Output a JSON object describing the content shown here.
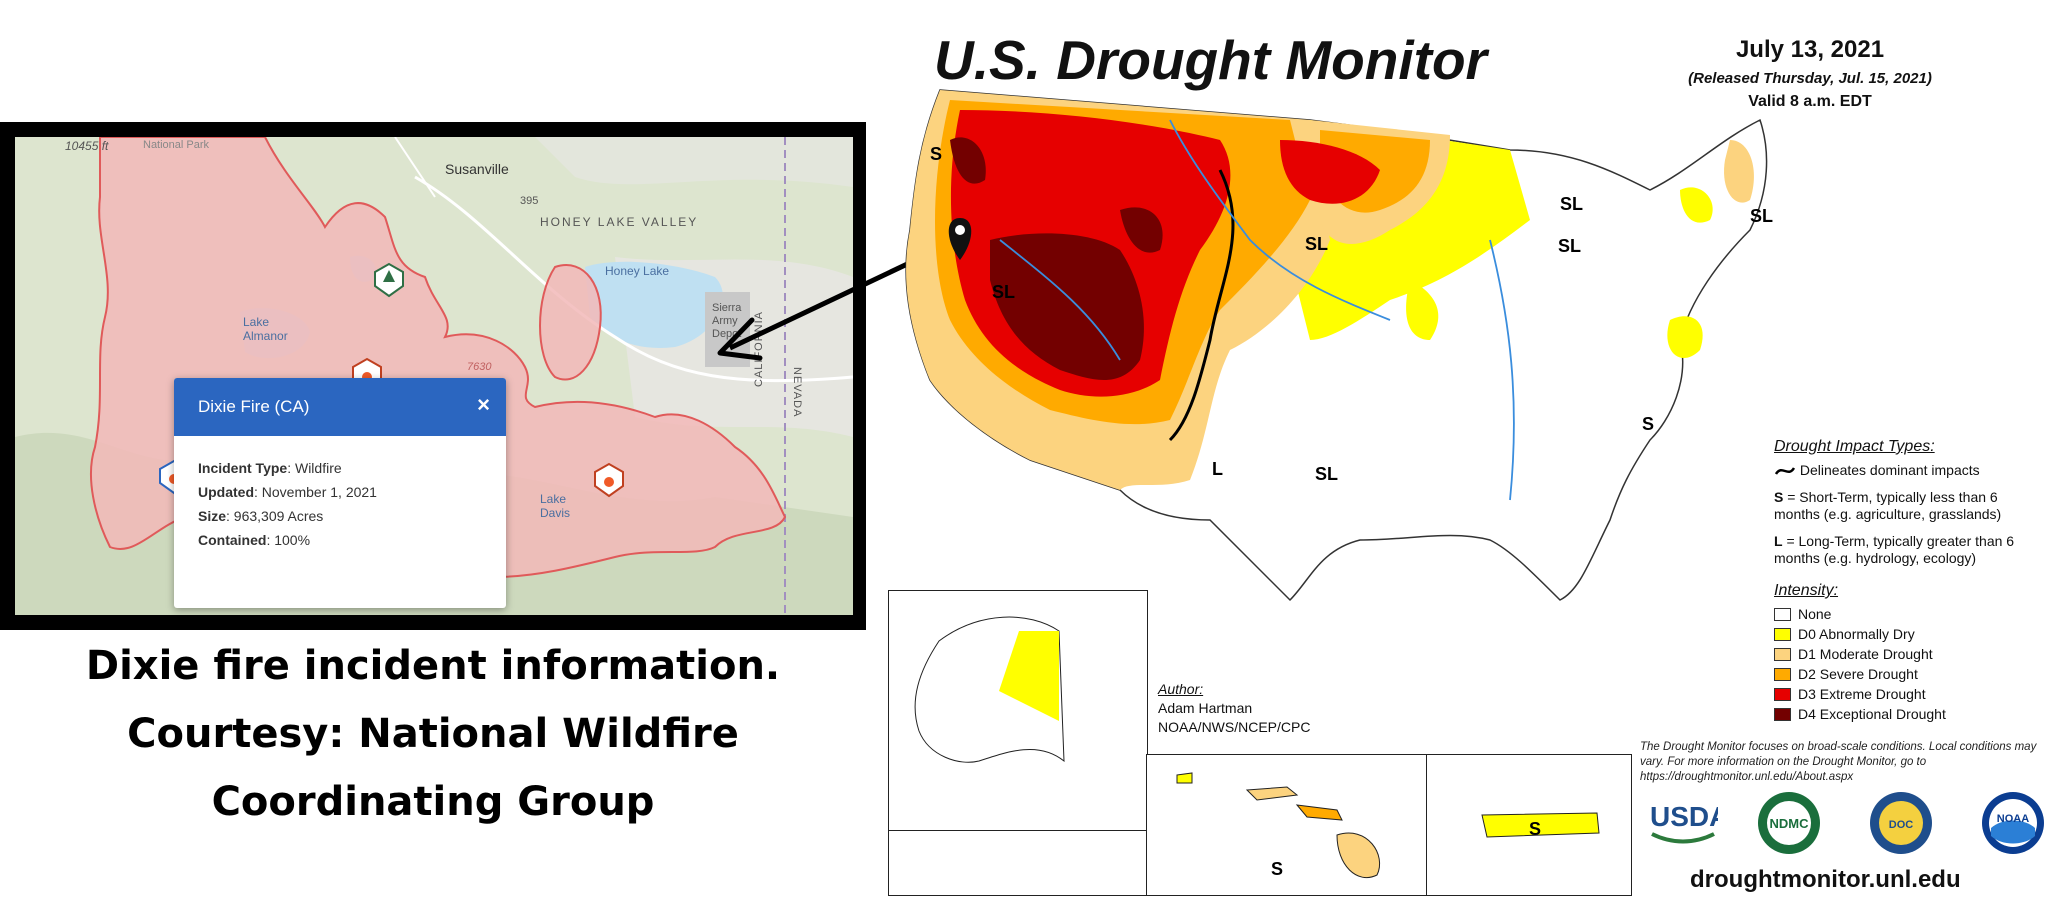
{
  "fire_map": {
    "labels": {
      "elevation": "10455 ft",
      "park": "National Park",
      "susanville": "Susanville",
      "highway": "395",
      "honey_lake_valley": "HONEY LAKE VALLEY",
      "honey_lake": "Honey Lake",
      "lake_almanor": "Lake Almanor",
      "sierra_army": "Sierra Army Depot",
      "lake_davis": "Lake Davis",
      "california": "CALIFORNIA",
      "nevada": "NEVADA",
      "contour": "7630"
    },
    "popup": {
      "title": "Dixie Fire (CA)",
      "close": "×",
      "incident_type_label": "Incident Type",
      "incident_type": "Wildfire",
      "updated_label": "Updated",
      "updated": "November 1, 2021",
      "size_label": "Size",
      "size": "963,309 Acres",
      "contained_label": "Contained",
      "contained": "100%"
    }
  },
  "caption": {
    "line1": "Dixie fire incident information.",
    "line2": "Courtesy: National Wildfire",
    "line3": "Coordinating Group"
  },
  "drought_monitor": {
    "title": "U.S. Drought Monitor",
    "date": "July 13, 2021",
    "released": "(Released Thursday, Jul. 15, 2021)",
    "valid": "Valid 8 a.m. EDT",
    "map_labels": [
      "S",
      "SL",
      "SL",
      "SL",
      "SL",
      "SL",
      "L",
      "SL",
      "S",
      "S",
      "S"
    ],
    "impact": {
      "title": "Drought Impact Types:",
      "delineates": "Delineates dominant impacts",
      "s_key": "S",
      "s_text": " = Short-Term, typically less than 6 months (e.g. agriculture, grasslands)",
      "l_key": "L",
      "l_text": " = Long-Term, typically greater than 6 months (e.g. hydrology, ecology)"
    },
    "intensity": {
      "title": "Intensity:",
      "items": [
        {
          "label": "None",
          "color": "#ffffff"
        },
        {
          "label": "D0 Abnormally Dry",
          "color": "#ffff00"
        },
        {
          "label": "D1 Moderate Drought",
          "color": "#fcd37f"
        },
        {
          "label": "D2 Severe Drought",
          "color": "#ffaa00"
        },
        {
          "label": "D3 Extreme Drought",
          "color": "#e60000"
        },
        {
          "label": "D4 Exceptional Drought",
          "color": "#730000"
        }
      ]
    },
    "author": {
      "title": "Author:",
      "name": "Adam Hartman",
      "org": "NOAA/NWS/NCEP/CPC"
    },
    "note": "The Drought Monitor focuses on broad-scale conditions. Local conditions may vary. For more information on the Drought Monitor, go to https://droughtmonitor.unl.edu/About.aspx",
    "logos": [
      "USDA",
      "NDMC",
      "DOC",
      "NOAA"
    ],
    "url": "droughtmonitor.unl.edu"
  }
}
